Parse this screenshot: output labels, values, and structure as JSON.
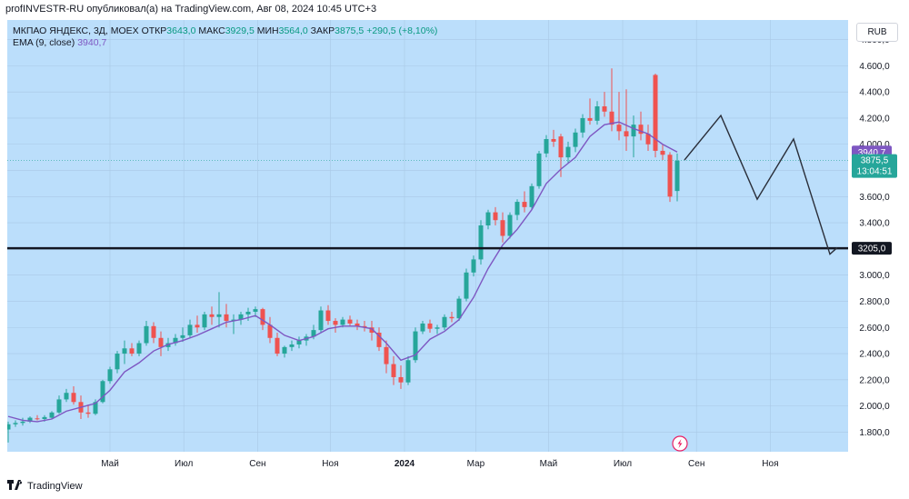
{
  "caption": "profINVESTR-RU опубликовал(а) на TradingView.com, Авг 08, 2024 10:45 UTC+3",
  "legend": {
    "symbol": "МКПАО ЯНДЕКС, 3Д, MOEX",
    "open_label": "ОТКР",
    "open_value": "3643,0",
    "high_label": "МАКС",
    "high_value": "3929,5",
    "low_label": "МИН",
    "low_value": "3564,0",
    "close_label": "ЗАКР",
    "close_value": "3875,5",
    "change": "+290,5 (+8,10%)",
    "ema_label": "EMA (9, close)",
    "ema_value": "3940,7"
  },
  "currency_button": "RUB",
  "price_tags": {
    "ema": "3940,7",
    "last_price": "3875,5",
    "countdown": "13:04:51",
    "level": "3205,0"
  },
  "brand": "TradingView",
  "colors": {
    "background": "#bbdefb",
    "up": "#26a69a",
    "down": "#ef5350",
    "ema": "#7e57c2",
    "level_line": "#131722",
    "projection": "#2a2e39"
  },
  "chart_data": {
    "type": "candlestick",
    "ylim": [
      1650,
      4950
    ],
    "y_ticks": [
      1800,
      2000,
      2200,
      2400,
      2600,
      2800,
      3000,
      3200,
      3400,
      3600,
      3800,
      4000,
      4200,
      4400,
      4600,
      4800
    ],
    "y_tick_labels": [
      "1.800,0",
      "2.000,0",
      "2.200,0",
      "2.400,0",
      "2.600,0",
      "2.800,0",
      "3.000,0",
      "3.200,0",
      "3.400,0",
      "3.600,0",
      "3.800,0",
      "4.000,0",
      "4.200,0",
      "4.400,0",
      "4.600,0",
      "4.800,0"
    ],
    "x_ticks": [
      {
        "label": "Май",
        "t": 28,
        "bold": false
      },
      {
        "label": "Июл",
        "t": 48.3,
        "bold": false
      },
      {
        "label": "Сен",
        "t": 68.6,
        "bold": false
      },
      {
        "label": "Ноя",
        "t": 88.6,
        "bold": false
      },
      {
        "label": "2024",
        "t": 109,
        "bold": true
      },
      {
        "label": "Мар",
        "t": 128.6,
        "bold": false
      },
      {
        "label": "Май",
        "t": 148.6,
        "bold": false
      },
      {
        "label": "Июл",
        "t": 169,
        "bold": false
      },
      {
        "label": "Сен",
        "t": 189.3,
        "bold": false
      },
      {
        "label": "Ноя",
        "t": 209.6,
        "bold": false
      }
    ],
    "candles": [
      {
        "t": 0,
        "o": 1820,
        "h": 1880,
        "l": 1720,
        "c": 1860
      },
      {
        "t": 2,
        "o": 1860,
        "h": 1890,
        "l": 1840,
        "c": 1870
      },
      {
        "t": 4,
        "o": 1870,
        "h": 1910,
        "l": 1850,
        "c": 1880
      },
      {
        "t": 6,
        "o": 1880,
        "h": 1920,
        "l": 1870,
        "c": 1910
      },
      {
        "t": 8,
        "o": 1905,
        "h": 1930,
        "l": 1890,
        "c": 1900
      },
      {
        "t": 10,
        "o": 1900,
        "h": 1930,
        "l": 1880,
        "c": 1915
      },
      {
        "t": 12,
        "o": 1910,
        "h": 1960,
        "l": 1900,
        "c": 1950
      },
      {
        "t": 14,
        "o": 1950,
        "h": 2080,
        "l": 1940,
        "c": 2050
      },
      {
        "t": 16,
        "o": 2050,
        "h": 2130,
        "l": 2030,
        "c": 2100
      },
      {
        "t": 18,
        "o": 2100,
        "h": 2150,
        "l": 2010,
        "c": 2030
      },
      {
        "t": 20,
        "o": 2030,
        "h": 2080,
        "l": 1900,
        "c": 1950
      },
      {
        "t": 22,
        "o": 1950,
        "h": 2010,
        "l": 1910,
        "c": 1940
      },
      {
        "t": 24,
        "o": 1940,
        "h": 2050,
        "l": 1930,
        "c": 2030
      },
      {
        "t": 26,
        "o": 2030,
        "h": 2200,
        "l": 2020,
        "c": 2190
      },
      {
        "t": 28,
        "o": 2190,
        "h": 2300,
        "l": 2170,
        "c": 2280
      },
      {
        "t": 30,
        "o": 2280,
        "h": 2420,
        "l": 2250,
        "c": 2400
      },
      {
        "t": 32,
        "o": 2400,
        "h": 2500,
        "l": 2320,
        "c": 2440
      },
      {
        "t": 34,
        "o": 2440,
        "h": 2480,
        "l": 2380,
        "c": 2400
      },
      {
        "t": 36,
        "o": 2400,
        "h": 2500,
        "l": 2380,
        "c": 2480
      },
      {
        "t": 38,
        "o": 2480,
        "h": 2650,
        "l": 2460,
        "c": 2610
      },
      {
        "t": 40,
        "o": 2610,
        "h": 2640,
        "l": 2480,
        "c": 2520
      },
      {
        "t": 42,
        "o": 2520,
        "h": 2570,
        "l": 2380,
        "c": 2450
      },
      {
        "t": 44,
        "o": 2450,
        "h": 2520,
        "l": 2420,
        "c": 2480
      },
      {
        "t": 46,
        "o": 2480,
        "h": 2550,
        "l": 2460,
        "c": 2520
      },
      {
        "t": 48,
        "o": 2520,
        "h": 2600,
        "l": 2490,
        "c": 2540
      },
      {
        "t": 50,
        "o": 2540,
        "h": 2660,
        "l": 2520,
        "c": 2620
      },
      {
        "t": 52,
        "o": 2620,
        "h": 2690,
        "l": 2560,
        "c": 2600
      },
      {
        "t": 54,
        "o": 2600,
        "h": 2720,
        "l": 2580,
        "c": 2700
      },
      {
        "t": 56,
        "o": 2700,
        "h": 2760,
        "l": 2620,
        "c": 2680
      },
      {
        "t": 58,
        "o": 2680,
        "h": 2870,
        "l": 2600,
        "c": 2700
      },
      {
        "t": 60,
        "o": 2700,
        "h": 2780,
        "l": 2600,
        "c": 2650
      },
      {
        "t": 62,
        "o": 2650,
        "h": 2700,
        "l": 2550,
        "c": 2660
      },
      {
        "t": 64,
        "o": 2660,
        "h": 2720,
        "l": 2620,
        "c": 2700
      },
      {
        "t": 66,
        "o": 2700,
        "h": 2750,
        "l": 2650,
        "c": 2720
      },
      {
        "t": 68,
        "o": 2720,
        "h": 2760,
        "l": 2680,
        "c": 2740
      },
      {
        "t": 70,
        "o": 2740,
        "h": 2750,
        "l": 2580,
        "c": 2620
      },
      {
        "t": 72,
        "o": 2620,
        "h": 2680,
        "l": 2480,
        "c": 2520
      },
      {
        "t": 74,
        "o": 2520,
        "h": 2560,
        "l": 2380,
        "c": 2400
      },
      {
        "t": 76,
        "o": 2400,
        "h": 2460,
        "l": 2370,
        "c": 2450
      },
      {
        "t": 78,
        "o": 2450,
        "h": 2500,
        "l": 2420,
        "c": 2470
      },
      {
        "t": 80,
        "o": 2470,
        "h": 2530,
        "l": 2440,
        "c": 2500
      },
      {
        "t": 82,
        "o": 2500,
        "h": 2550,
        "l": 2460,
        "c": 2530
      },
      {
        "t": 84,
        "o": 2530,
        "h": 2620,
        "l": 2510,
        "c": 2580
      },
      {
        "t": 86,
        "o": 2580,
        "h": 2760,
        "l": 2560,
        "c": 2730
      },
      {
        "t": 88,
        "o": 2730,
        "h": 2770,
        "l": 2620,
        "c": 2650
      },
      {
        "t": 90,
        "o": 2650,
        "h": 2670,
        "l": 2560,
        "c": 2620
      },
      {
        "t": 92,
        "o": 2620,
        "h": 2680,
        "l": 2600,
        "c": 2660
      },
      {
        "t": 94,
        "o": 2660,
        "h": 2690,
        "l": 2610,
        "c": 2630
      },
      {
        "t": 96,
        "o": 2630,
        "h": 2660,
        "l": 2580,
        "c": 2610
      },
      {
        "t": 98,
        "o": 2610,
        "h": 2650,
        "l": 2570,
        "c": 2600
      },
      {
        "t": 100,
        "o": 2600,
        "h": 2650,
        "l": 2500,
        "c": 2560
      },
      {
        "t": 102,
        "o": 2560,
        "h": 2600,
        "l": 2420,
        "c": 2450
      },
      {
        "t": 104,
        "o": 2450,
        "h": 2500,
        "l": 2250,
        "c": 2320
      },
      {
        "t": 106,
        "o": 2320,
        "h": 2380,
        "l": 2160,
        "c": 2220
      },
      {
        "t": 108,
        "o": 2220,
        "h": 2310,
        "l": 2130,
        "c": 2180
      },
      {
        "t": 110,
        "o": 2180,
        "h": 2380,
        "l": 2160,
        "c": 2350
      },
      {
        "t": 112,
        "o": 2350,
        "h": 2600,
        "l": 2330,
        "c": 2570
      },
      {
        "t": 114,
        "o": 2570,
        "h": 2650,
        "l": 2550,
        "c": 2630
      },
      {
        "t": 116,
        "o": 2630,
        "h": 2660,
        "l": 2560,
        "c": 2590
      },
      {
        "t": 118,
        "o": 2590,
        "h": 2620,
        "l": 2550,
        "c": 2600
      },
      {
        "t": 120,
        "o": 2600,
        "h": 2700,
        "l": 2580,
        "c": 2680
      },
      {
        "t": 122,
        "o": 2680,
        "h": 2720,
        "l": 2640,
        "c": 2670
      },
      {
        "t": 124,
        "o": 2670,
        "h": 2840,
        "l": 2650,
        "c": 2820
      },
      {
        "t": 126,
        "o": 2820,
        "h": 3050,
        "l": 2800,
        "c": 3020
      },
      {
        "t": 128,
        "o": 3020,
        "h": 3150,
        "l": 2990,
        "c": 3120
      },
      {
        "t": 130,
        "o": 3120,
        "h": 3420,
        "l": 3080,
        "c": 3380
      },
      {
        "t": 132,
        "o": 3380,
        "h": 3500,
        "l": 3350,
        "c": 3480
      },
      {
        "t": 134,
        "o": 3480,
        "h": 3520,
        "l": 3380,
        "c": 3420
      },
      {
        "t": 136,
        "o": 3420,
        "h": 3480,
        "l": 3250,
        "c": 3300
      },
      {
        "t": 138,
        "o": 3300,
        "h": 3480,
        "l": 3280,
        "c": 3460
      },
      {
        "t": 140,
        "o": 3460,
        "h": 3580,
        "l": 3420,
        "c": 3560
      },
      {
        "t": 142,
        "o": 3560,
        "h": 3640,
        "l": 3480,
        "c": 3520
      },
      {
        "t": 144,
        "o": 3520,
        "h": 3700,
        "l": 3500,
        "c": 3680
      },
      {
        "t": 146,
        "o": 3680,
        "h": 3950,
        "l": 3660,
        "c": 3930
      },
      {
        "t": 148,
        "o": 3930,
        "h": 4070,
        "l": 3900,
        "c": 4040
      },
      {
        "t": 150,
        "o": 4040,
        "h": 4110,
        "l": 3980,
        "c": 4020
      },
      {
        "t": 152,
        "o": 4060,
        "h": 4080,
        "l": 3750,
        "c": 3900
      },
      {
        "t": 154,
        "o": 3900,
        "h": 4020,
        "l": 3860,
        "c": 3980
      },
      {
        "t": 156,
        "o": 3980,
        "h": 4120,
        "l": 3940,
        "c": 4090
      },
      {
        "t": 158,
        "o": 4090,
        "h": 4230,
        "l": 4050,
        "c": 4200
      },
      {
        "t": 160,
        "o": 4200,
        "h": 4350,
        "l": 4150,
        "c": 4180
      },
      {
        "t": 162,
        "o": 4180,
        "h": 4330,
        "l": 4150,
        "c": 4290
      },
      {
        "t": 164,
        "o": 4290,
        "h": 4400,
        "l": 4210,
        "c": 4250
      },
      {
        "t": 166,
        "o": 4250,
        "h": 4580,
        "l": 4100,
        "c": 4150
      },
      {
        "t": 168,
        "o": 4150,
        "h": 4400,
        "l": 4030,
        "c": 4100
      },
      {
        "t": 170,
        "o": 4100,
        "h": 4420,
        "l": 3950,
        "c": 4060
      },
      {
        "t": 172,
        "o": 4060,
        "h": 4220,
        "l": 3900,
        "c": 4150
      },
      {
        "t": 174,
        "o": 4150,
        "h": 4250,
        "l": 4030,
        "c": 4080
      },
      {
        "t": 176,
        "o": 4080,
        "h": 4150,
        "l": 3950,
        "c": 4000
      },
      {
        "t": 178,
        "o": 4530,
        "h": 4540,
        "l": 3900,
        "c": 3950
      },
      {
        "t": 180,
        "o": 3950,
        "h": 4000,
        "l": 3880,
        "c": 3920
      },
      {
        "t": 182,
        "o": 3920,
        "h": 3940,
        "l": 3560,
        "c": 3600
      },
      {
        "t": 184,
        "o": 3643,
        "h": 3929.5,
        "l": 3564,
        "c": 3875.5
      }
    ],
    "ema": {
      "name": "EMA (9, close)",
      "points": [
        [
          0,
          1920
        ],
        [
          4,
          1890
        ],
        [
          8,
          1880
        ],
        [
          12,
          1900
        ],
        [
          16,
          1960
        ],
        [
          20,
          1990
        ],
        [
          24,
          2020
        ],
        [
          28,
          2120
        ],
        [
          32,
          2260
        ],
        [
          36,
          2330
        ],
        [
          40,
          2420
        ],
        [
          44,
          2470
        ],
        [
          48,
          2500
        ],
        [
          52,
          2540
        ],
        [
          56,
          2590
        ],
        [
          60,
          2640
        ],
        [
          64,
          2660
        ],
        [
          68,
          2690
        ],
        [
          72,
          2620
        ],
        [
          76,
          2540
        ],
        [
          80,
          2500
        ],
        [
          84,
          2530
        ],
        [
          88,
          2590
        ],
        [
          92,
          2610
        ],
        [
          96,
          2610
        ],
        [
          100,
          2590
        ],
        [
          104,
          2480
        ],
        [
          108,
          2350
        ],
        [
          112,
          2390
        ],
        [
          116,
          2510
        ],
        [
          120,
          2570
        ],
        [
          124,
          2660
        ],
        [
          128,
          2830
        ],
        [
          132,
          3050
        ],
        [
          136,
          3230
        ],
        [
          140,
          3350
        ],
        [
          144,
          3500
        ],
        [
          148,
          3700
        ],
        [
          152,
          3810
        ],
        [
          156,
          3900
        ],
        [
          160,
          4060
        ],
        [
          164,
          4150
        ],
        [
          168,
          4170
        ],
        [
          172,
          4120
        ],
        [
          176,
          4080
        ],
        [
          180,
          4000
        ],
        [
          184,
          3940.7
        ]
      ]
    },
    "horizontal_level": 3205,
    "projection_path": [
      [
        186,
        3880
      ],
      [
        196,
        4220
      ],
      [
        206,
        3580
      ],
      [
        216,
        4040
      ],
      [
        226,
        3160
      ],
      [
        228,
        3210
      ]
    ]
  }
}
